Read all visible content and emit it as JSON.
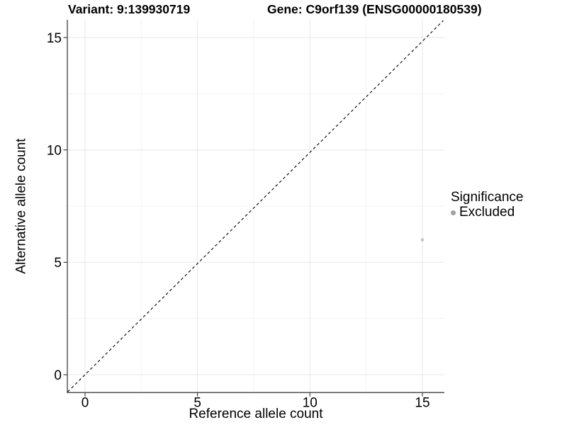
{
  "chart_data": {
    "type": "scatter",
    "titles": {
      "left": "Variant: 9:139930719",
      "right": "Gene: C9orf139 (ENSG00000180539)"
    },
    "xlabel": "Reference allele count",
    "ylabel": "Alternative allele count",
    "xlim": [
      -0.79,
      15.98
    ],
    "ylim": [
      -0.79,
      15.79
    ],
    "xticks": [
      0,
      5,
      10,
      15
    ],
    "yticks": [
      0,
      5,
      10,
      15
    ],
    "x_minor_ticks": [
      2.5,
      7.5,
      12.5
    ],
    "y_minor_ticks": [
      2.5,
      7.5,
      12.5
    ],
    "grid": true,
    "legend_position": "right",
    "reference_line": {
      "kind": "identity y=x",
      "linetype": "dashed",
      "color": "#000000"
    },
    "series": [
      {
        "name": "Excluded",
        "color": "#c4c4c4",
        "points": [
          {
            "x": 15,
            "y": 6
          }
        ]
      }
    ],
    "legend": {
      "title": "Significance",
      "entries": [
        {
          "label": "Excluded",
          "marker": "circle",
          "swatch_color": "#a0a0a0"
        }
      ]
    },
    "colors": {
      "major_grid": "#e7e7e7",
      "minor_grid": "#f3f3f3",
      "axis_line": "#404040",
      "tick_text": "#000000"
    }
  }
}
